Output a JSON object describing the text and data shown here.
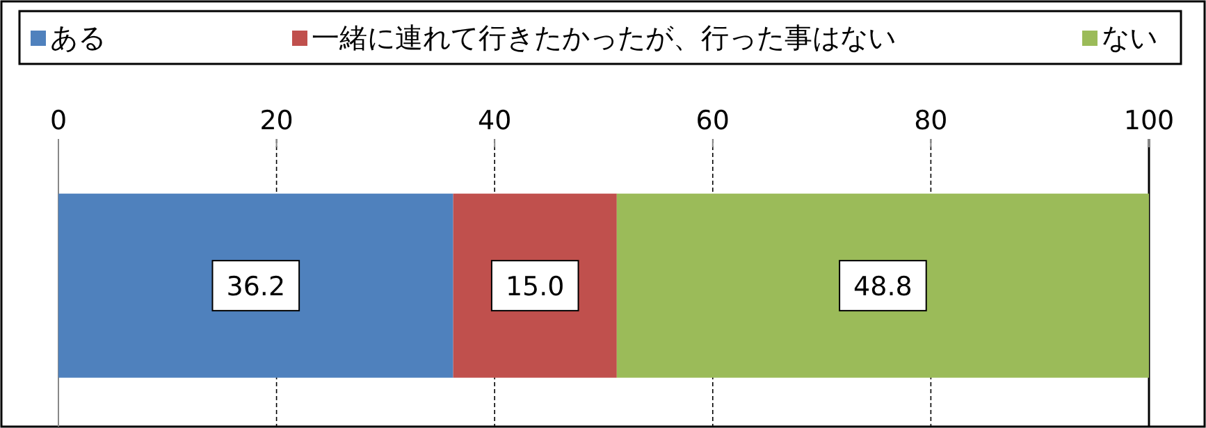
{
  "chart_data": {
    "type": "bar",
    "orientation": "horizontal",
    "stacked": true,
    "categories": [
      null
    ],
    "series": [
      {
        "name": "ある",
        "color": "#4f81bd",
        "values": [
          36.2
        ],
        "value_labels": [
          "36.2"
        ]
      },
      {
        "name": "一緒に連れて行きたかったが、行った事はない",
        "color": "#c0504d",
        "values": [
          15.0
        ],
        "value_labels": [
          "15.0"
        ]
      },
      {
        "name": "ない",
        "color": "#9bbb59",
        "values": [
          48.8
        ],
        "value_labels": [
          "48.8"
        ]
      }
    ],
    "xlim": [
      0,
      100
    ],
    "xticks": [
      0,
      20,
      40,
      60,
      80,
      100
    ],
    "grid": "x",
    "legend": "top"
  }
}
